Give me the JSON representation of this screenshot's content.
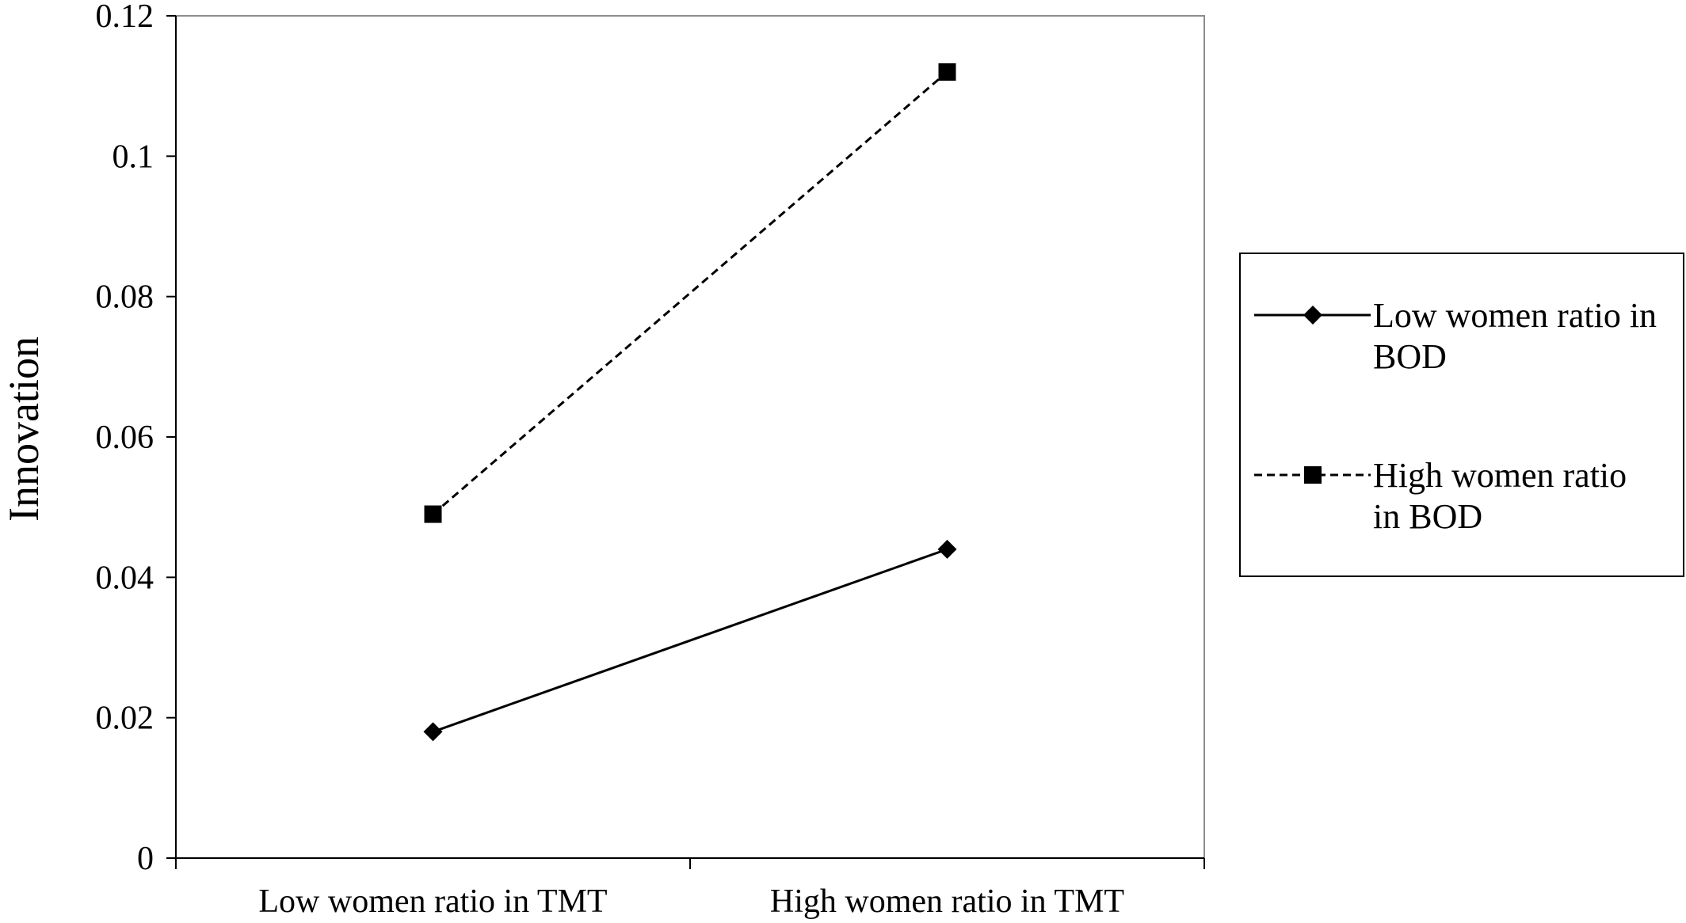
{
  "chart_data": {
    "type": "line",
    "title": "",
    "xlabel": "",
    "ylabel": "Innovation",
    "ylim": [
      0,
      0.12
    ],
    "yticks": [
      "0",
      "0.02",
      "0.04",
      "0.06",
      "0.08",
      "0.1",
      "0.12"
    ],
    "categories": [
      "Low women ratio in TMT",
      "High women ratio in TMT"
    ],
    "legend_position": "right",
    "grid": false,
    "series": [
      {
        "name_lines": [
          "Low women ratio in",
          "BOD"
        ],
        "values": [
          0.018,
          0.044
        ],
        "line_style": "solid",
        "marker": "diamond",
        "color": "#000000"
      },
      {
        "name_lines": [
          "High women ratio",
          "in BOD"
        ],
        "values": [
          0.049,
          0.112
        ],
        "line_style": "dashed",
        "marker": "square",
        "color": "#000000"
      }
    ]
  }
}
